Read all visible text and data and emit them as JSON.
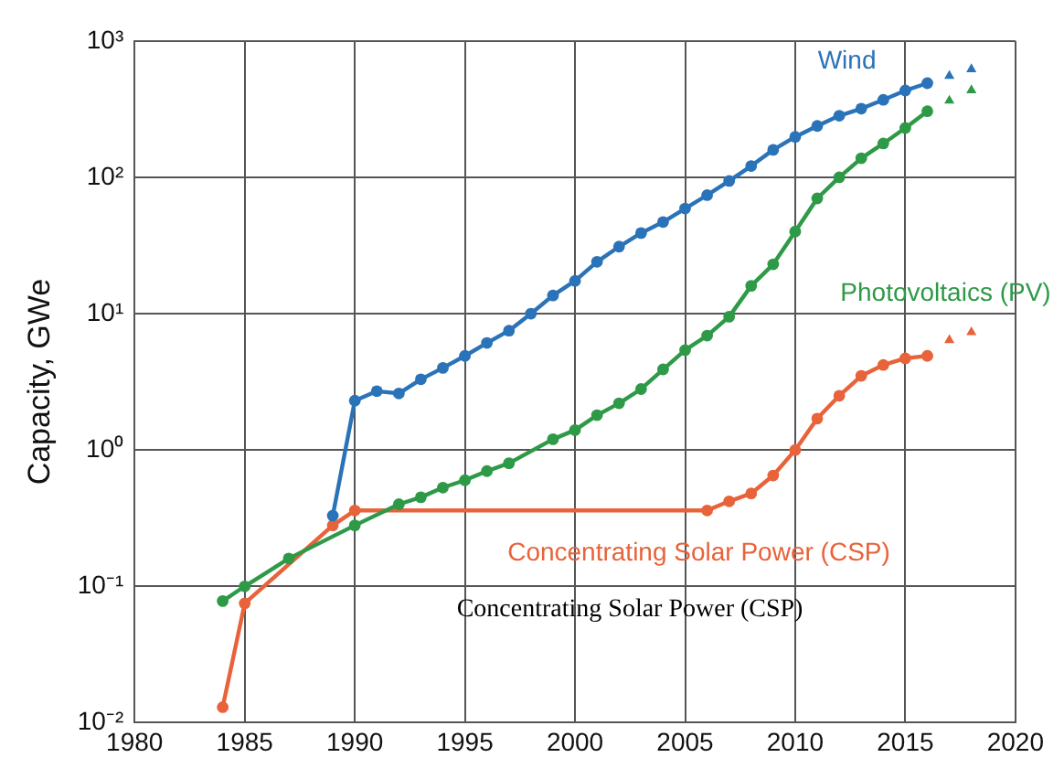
{
  "chart_data": {
    "type": "line",
    "ylabel": "Capacity, GWe",
    "log": "y",
    "grid": true,
    "legend": false,
    "marker": "circle",
    "line_style": "solid",
    "xlim": [
      1980,
      2020
    ],
    "xticks": [
      1980,
      1985,
      1990,
      1995,
      2000,
      2005,
      2010,
      2015,
      2020
    ],
    "ylim": [
      0.01,
      1000
    ],
    "yticks": [
      {
        "value": 0.01,
        "label": "10⁻²"
      },
      {
        "value": 0.1,
        "label": "10⁻¹"
      },
      {
        "value": 1,
        "label": "10⁰"
      },
      {
        "value": 10,
        "label": "10¹"
      },
      {
        "value": 100,
        "label": "10²"
      },
      {
        "value": 1000,
        "label": "10³"
      }
    ],
    "annotations": [
      "Concentrating Solar Power (CSP)"
    ],
    "series": [
      {
        "name": "Wind",
        "color": "#2a73b8",
        "x": [
          1989,
          1990,
          1991,
          1992,
          1993,
          1994,
          1995,
          1996,
          1997,
          1998,
          1999,
          2000,
          2001,
          2002,
          2003,
          2004,
          2005,
          2006,
          2007,
          2008,
          2009,
          2010,
          2011,
          2012,
          2013,
          2014,
          2015,
          2016
        ],
        "values": [
          0.33,
          2.3,
          2.7,
          2.6,
          3.3,
          4,
          4.9,
          6.1,
          7.5,
          10,
          13.6,
          17.4,
          24,
          31,
          39,
          47,
          59,
          74,
          94,
          121,
          159,
          198,
          238,
          283,
          319,
          370,
          433,
          490
        ]
      },
      {
        "name": "Photovoltaics (PV)",
        "color": "#2e9a48",
        "x": [
          1984,
          1985,
          1987,
          1990,
          1992,
          1993,
          1994,
          1995,
          1996,
          1997,
          1999,
          2000,
          2001,
          2002,
          2003,
          2004,
          2005,
          2006,
          2007,
          2008,
          2009,
          2010,
          2011,
          2012,
          2013,
          2014,
          2015,
          2016
        ],
        "values": [
          0.078,
          0.1,
          0.16,
          0.28,
          0.4,
          0.45,
          0.53,
          0.6,
          0.7,
          0.8,
          1.2,
          1.4,
          1.8,
          2.2,
          2.8,
          3.9,
          5.4,
          6.9,
          9.5,
          16,
          23,
          40,
          70,
          100,
          138,
          177,
          230,
          305
        ]
      },
      {
        "name": "Concentrating Solar Power (CSP)",
        "color": "#e8623a",
        "x": [
          1984,
          1985,
          1989,
          1990,
          2006,
          2007,
          2008,
          2009,
          2010,
          2011,
          2012,
          2013,
          2014,
          2015,
          2016
        ],
        "values": [
          0.013,
          0.075,
          0.28,
          0.36,
          0.36,
          0.42,
          0.48,
          0.65,
          1.0,
          1.7,
          2.5,
          3.5,
          4.2,
          4.7,
          4.9
        ]
      },
      {
        "type": "scatter",
        "marker": "triangle",
        "color": "#2a73b8",
        "x": [
          2017,
          2018
        ],
        "values": [
          555,
          620
        ]
      },
      {
        "type": "scatter",
        "marker": "triangle",
        "color": "#2e9a48",
        "x": [
          2017,
          2018
        ],
        "values": [
          365,
          435
        ]
      },
      {
        "type": "scatter",
        "marker": "triangle",
        "color": "#e8623a",
        "x": [
          2017,
          2018
        ],
        "values": [
          6.4,
          7.3
        ]
      }
    ]
  }
}
